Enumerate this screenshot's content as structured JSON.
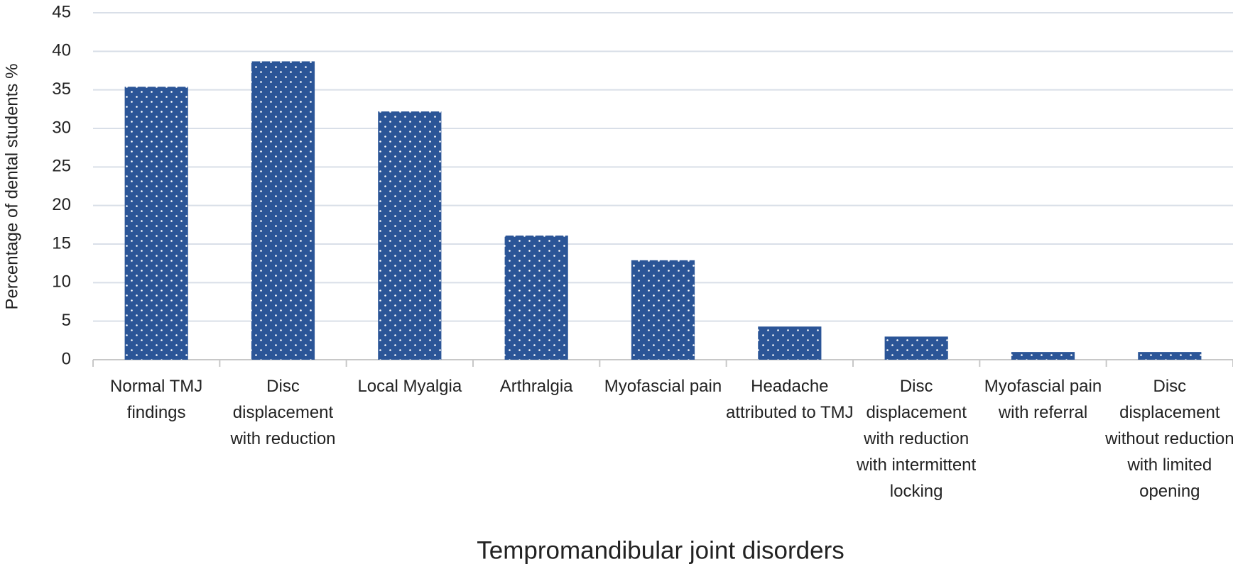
{
  "chart_data": {
    "type": "bar",
    "x_label": "Tempromandibular joint disorders",
    "y_label": "Percentage of dental students %",
    "categories": [
      "Normal TMJ findings",
      "Disc displacement with reduction",
      "Local Myalgia",
      "Arthralgia",
      "Myofascial pain",
      "Headache attributed to TMJ",
      "Disc displacement with reduction with intermittent locking",
      "Myofascial pain with referral",
      "Disc displacement without reduction with limited opening"
    ],
    "values": [
      35.4,
      38.7,
      32.2,
      16.1,
      12.9,
      4.3,
      3.0,
      1.0,
      1.0
    ],
    "color": "#2b5597",
    "ylim": [
      0,
      45
    ],
    "yticks": [
      0,
      5,
      10,
      15,
      20,
      25,
      30,
      35,
      40,
      45
    ],
    "grid": true
  }
}
